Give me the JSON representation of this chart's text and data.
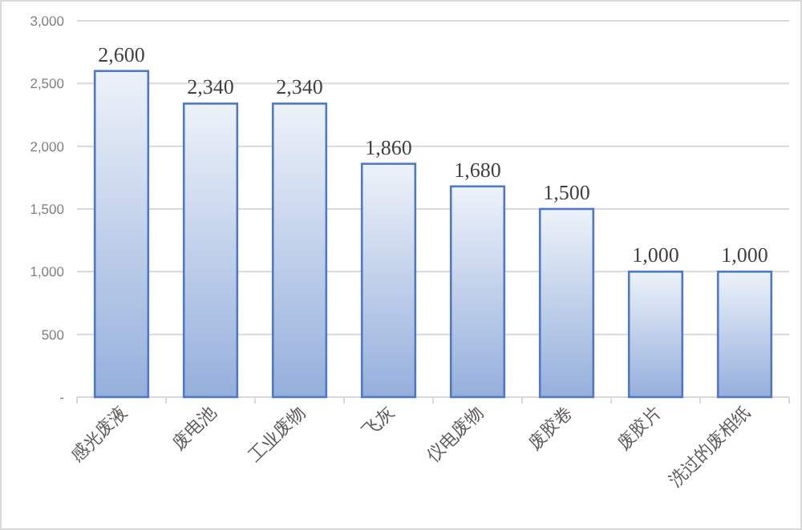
{
  "chart_data": {
    "type": "bar",
    "categories": [
      "感光废液",
      "废电池",
      "工业废物",
      "飞灰",
      "仪电废物",
      "废胶卷",
      "废胶片",
      "洗过的废相纸"
    ],
    "values": [
      2600,
      2340,
      2340,
      1860,
      1680,
      1500,
      1000,
      1000
    ],
    "value_labels": [
      "2,600",
      "2,340",
      "2,340",
      "1,860",
      "1,680",
      "1,500",
      "1,000",
      "1,000"
    ],
    "color": "#4f79c4",
    "ylim": [
      0,
      3000
    ],
    "yticks": [
      {
        "value": 0,
        "label": "-"
      },
      {
        "value": 500,
        "label": "500"
      },
      {
        "value": 1000,
        "label": "1,000"
      },
      {
        "value": 1500,
        "label": "1,500"
      },
      {
        "value": 2000,
        "label": "2,000"
      },
      {
        "value": 2500,
        "label": "2,500"
      },
      {
        "value": 3000,
        "label": "3,000"
      }
    ],
    "grid": "y"
  }
}
